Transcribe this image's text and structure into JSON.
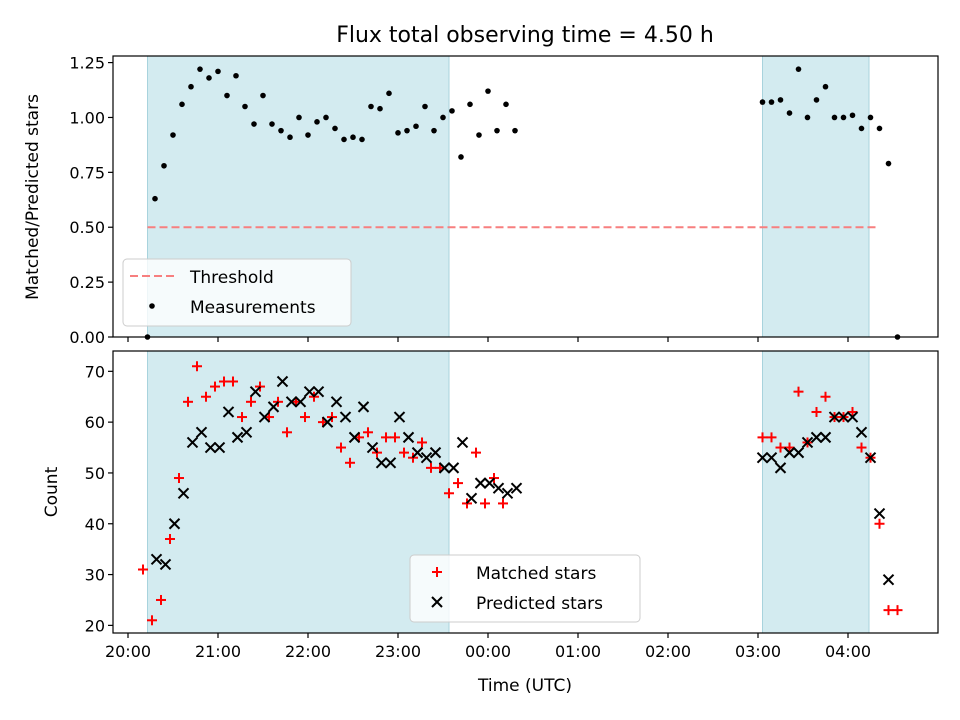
{
  "figure": {
    "title": "Flux total observing time = 4.50 h",
    "shade_color": "#d3ebf0",
    "tick_labels_x": [
      "20:00",
      "21:00",
      "22:00",
      "23:00",
      "00:00",
      "01:00",
      "02:00",
      "03:00",
      "04:00"
    ]
  },
  "chart_data": [
    {
      "type": "scatter",
      "ylabel": "Matched/Predicted stars",
      "ylim": [
        0,
        1.28
      ],
      "yticks": [
        "0.00",
        "0.25",
        "0.50",
        "0.75",
        "1.00",
        "1.25"
      ],
      "shaded_time_ranges": [
        [
          "20:13",
          "23:34"
        ],
        [
          "03:03",
          "04:14"
        ]
      ],
      "legend": {
        "placement": "lower-left",
        "entries": [
          "Threshold",
          "Measurements"
        ]
      },
      "threshold": {
        "name": "Threshold",
        "value": 0.5,
        "color": "#f77f7f",
        "x_range": [
          "20:13",
          "04:20"
        ]
      },
      "series": [
        {
          "name": "Measurements",
          "color": "#000000",
          "points": [
            [
              "20:13",
              0.0
            ],
            [
              "20:18",
              0.63
            ],
            [
              "20:24",
              0.78
            ],
            [
              "20:30",
              0.92
            ],
            [
              "20:36",
              1.06
            ],
            [
              "20:42",
              1.14
            ],
            [
              "20:48",
              1.22
            ],
            [
              "20:54",
              1.18
            ],
            [
              "21:00",
              1.21
            ],
            [
              "21:06",
              1.1
            ],
            [
              "21:12",
              1.19
            ],
            [
              "21:18",
              1.05
            ],
            [
              "21:24",
              0.97
            ],
            [
              "21:30",
              1.1
            ],
            [
              "21:36",
              0.97
            ],
            [
              "21:42",
              0.94
            ],
            [
              "21:48",
              0.91
            ],
            [
              "21:54",
              1.0
            ],
            [
              "22:00",
              0.92
            ],
            [
              "22:06",
              0.98
            ],
            [
              "22:12",
              1.0
            ],
            [
              "22:18",
              0.95
            ],
            [
              "22:24",
              0.9
            ],
            [
              "22:30",
              0.91
            ],
            [
              "22:36",
              0.9
            ],
            [
              "22:42",
              1.05
            ],
            [
              "22:48",
              1.04
            ],
            [
              "22:54",
              1.11
            ],
            [
              "23:00",
              0.93
            ],
            [
              "23:06",
              0.94
            ],
            [
              "23:12",
              0.96
            ],
            [
              "23:18",
              1.05
            ],
            [
              "23:24",
              0.94
            ],
            [
              "23:30",
              1.0
            ],
            [
              "23:36",
              1.03
            ],
            [
              "23:42",
              0.82
            ],
            [
              "23:48",
              1.06
            ],
            [
              "23:54",
              0.92
            ],
            [
              "00:00",
              1.12
            ],
            [
              "00:06",
              0.94
            ],
            [
              "00:12",
              1.06
            ],
            [
              "00:18",
              0.94
            ],
            [
              "03:03",
              1.07
            ],
            [
              "03:09",
              1.07
            ],
            [
              "03:15",
              1.08
            ],
            [
              "03:21",
              1.02
            ],
            [
              "03:27",
              1.22
            ],
            [
              "03:33",
              1.0
            ],
            [
              "03:39",
              1.08
            ],
            [
              "03:45",
              1.14
            ],
            [
              "03:51",
              1.0
            ],
            [
              "03:57",
              1.0
            ],
            [
              "04:03",
              1.01
            ],
            [
              "04:09",
              0.95
            ],
            [
              "04:15",
              1.0
            ],
            [
              "04:21",
              0.95
            ],
            [
              "04:27",
              0.79
            ],
            [
              "04:33",
              0.0
            ]
          ]
        }
      ]
    },
    {
      "type": "scatter",
      "xlabel": "Time (UTC)",
      "ylabel": "Count",
      "ylim": [
        18.5,
        74
      ],
      "yticks": [
        "20",
        "30",
        "40",
        "50",
        "60",
        "70"
      ],
      "shaded_time_ranges": [
        [
          "20:13",
          "23:34"
        ],
        [
          "03:03",
          "04:14"
        ]
      ],
      "legend": {
        "placement": "bottom-center",
        "entries": [
          "Matched stars",
          "Predicted stars"
        ]
      },
      "series": [
        {
          "name": "Matched stars",
          "marker": "plus",
          "color": "#ff0000",
          "points": [
            [
              "20:10",
              31
            ],
            [
              "20:16",
              21
            ],
            [
              "20:22",
              25
            ],
            [
              "20:28",
              37
            ],
            [
              "20:34",
              49
            ],
            [
              "20:40",
              64
            ],
            [
              "20:46",
              71
            ],
            [
              "20:52",
              65
            ],
            [
              "20:58",
              67
            ],
            [
              "21:04",
              68
            ],
            [
              "21:10",
              68
            ],
            [
              "21:16",
              61
            ],
            [
              "21:22",
              64
            ],
            [
              "21:28",
              67
            ],
            [
              "21:34",
              61
            ],
            [
              "21:40",
              64
            ],
            [
              "21:46",
              58
            ],
            [
              "21:52",
              64
            ],
            [
              "21:58",
              61
            ],
            [
              "22:04",
              65
            ],
            [
              "22:10",
              60
            ],
            [
              "22:16",
              61
            ],
            [
              "22:22",
              55
            ],
            [
              "22:28",
              52
            ],
            [
              "22:34",
              57
            ],
            [
              "22:40",
              58
            ],
            [
              "22:46",
              54
            ],
            [
              "22:52",
              57
            ],
            [
              "22:58",
              57
            ],
            [
              "23:04",
              54
            ],
            [
              "23:10",
              53
            ],
            [
              "23:16",
              56
            ],
            [
              "23:22",
              51
            ],
            [
              "23:28",
              51
            ],
            [
              "23:34",
              46
            ],
            [
              "23:40",
              48
            ],
            [
              "23:46",
              44
            ],
            [
              "23:52",
              54
            ],
            [
              "23:58",
              44
            ],
            [
              "00:04",
              49
            ],
            [
              "00:10",
              44
            ],
            [
              "03:03",
              57
            ],
            [
              "03:09",
              57
            ],
            [
              "03:15",
              55
            ],
            [
              "03:21",
              55
            ],
            [
              "03:27",
              66
            ],
            [
              "03:33",
              56
            ],
            [
              "03:39",
              62
            ],
            [
              "03:45",
              65
            ],
            [
              "03:51",
              61
            ],
            [
              "03:57",
              61
            ],
            [
              "04:03",
              62
            ],
            [
              "04:09",
              55
            ],
            [
              "04:15",
              53
            ],
            [
              "04:21",
              40
            ],
            [
              "04:27",
              23
            ],
            [
              "04:33",
              23
            ]
          ]
        },
        {
          "name": "Predicted stars",
          "marker": "x",
          "color": "#000000",
          "points": [
            [
              "20:19",
              33
            ],
            [
              "20:25",
              32
            ],
            [
              "20:31",
              40
            ],
            [
              "20:37",
              46
            ],
            [
              "20:43",
              56
            ],
            [
              "20:49",
              58
            ],
            [
              "20:55",
              55
            ],
            [
              "21:01",
              55
            ],
            [
              "21:07",
              62
            ],
            [
              "21:13",
              57
            ],
            [
              "21:19",
              58
            ],
            [
              "21:25",
              66
            ],
            [
              "21:31",
              61
            ],
            [
              "21:37",
              63
            ],
            [
              "21:43",
              68
            ],
            [
              "21:49",
              64
            ],
            [
              "21:55",
              64
            ],
            [
              "22:01",
              66
            ],
            [
              "22:07",
              66
            ],
            [
              "22:13",
              60
            ],
            [
              "22:19",
              64
            ],
            [
              "22:25",
              61
            ],
            [
              "22:31",
              57
            ],
            [
              "22:37",
              63
            ],
            [
              "22:43",
              55
            ],
            [
              "22:49",
              52
            ],
            [
              "22:55",
              52
            ],
            [
              "23:01",
              61
            ],
            [
              "23:07",
              57
            ],
            [
              "23:13",
              54
            ],
            [
              "23:19",
              53
            ],
            [
              "23:25",
              54
            ],
            [
              "23:31",
              51
            ],
            [
              "23:37",
              51
            ],
            [
              "23:43",
              56
            ],
            [
              "23:49",
              45
            ],
            [
              "23:55",
              48
            ],
            [
              "00:01",
              48
            ],
            [
              "00:07",
              47
            ],
            [
              "00:13",
              46
            ],
            [
              "00:19",
              47
            ],
            [
              "03:03",
              53
            ],
            [
              "03:09",
              53
            ],
            [
              "03:15",
              51
            ],
            [
              "03:21",
              54
            ],
            [
              "03:27",
              54
            ],
            [
              "03:33",
              56
            ],
            [
              "03:39",
              57
            ],
            [
              "03:45",
              57
            ],
            [
              "03:51",
              61
            ],
            [
              "03:57",
              61
            ],
            [
              "04:03",
              61
            ],
            [
              "04:09",
              58
            ],
            [
              "04:15",
              53
            ],
            [
              "04:21",
              42
            ],
            [
              "04:27",
              29
            ]
          ]
        }
      ]
    }
  ]
}
